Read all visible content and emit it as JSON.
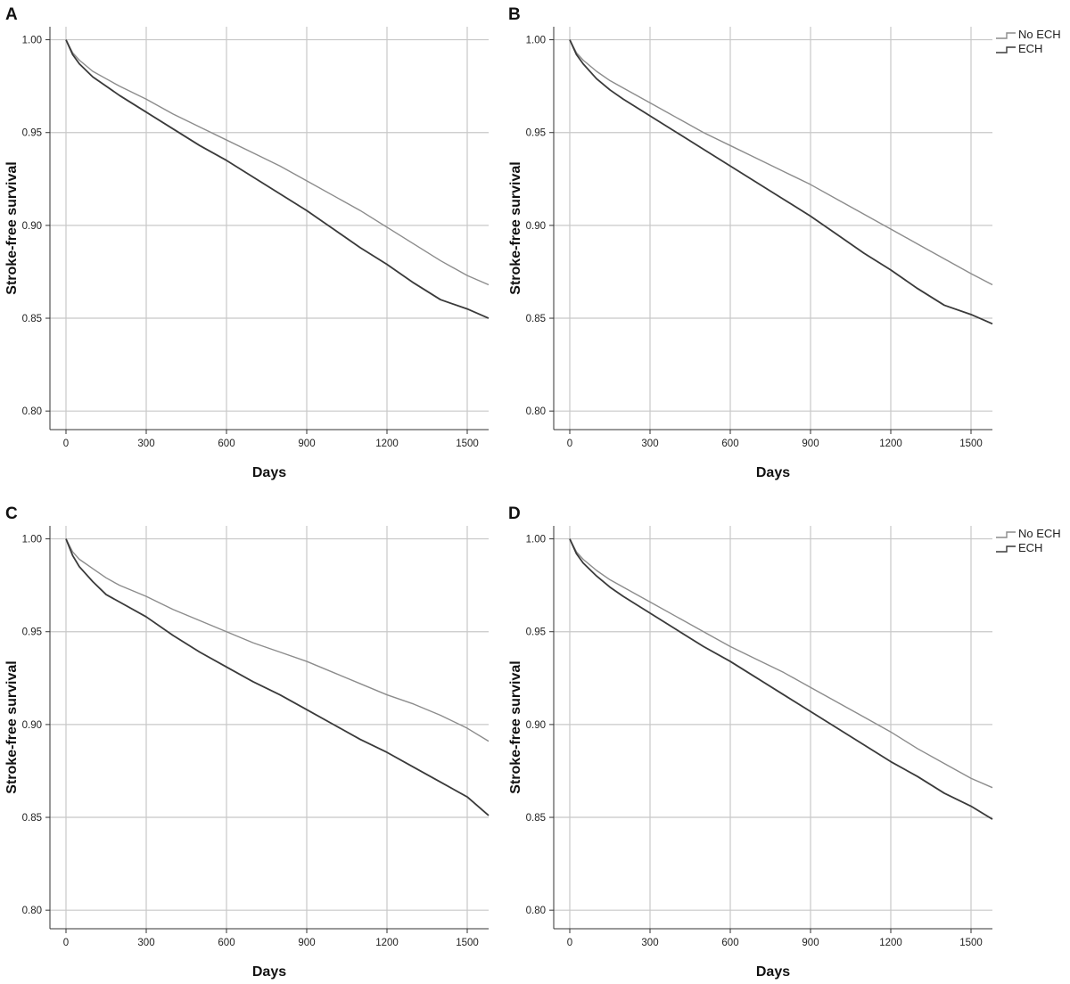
{
  "chart_data": [
    {
      "panel": "A",
      "type": "line",
      "xlabel": "Days",
      "ylabel": "Stroke-free survival",
      "xlim": [
        -60,
        1580
      ],
      "ylim": [
        0.79,
        1.007
      ],
      "xticks": [
        "0",
        "300",
        "600",
        "900",
        "1200",
        "1500"
      ],
      "yticks": [
        "0.80",
        "0.85",
        "0.90",
        "0.95",
        "1.00"
      ],
      "grid": true,
      "legend": [],
      "series": [
        {
          "name": "No ECH",
          "color": "#8c8c8c",
          "x": [
            0,
            25,
            50,
            100,
            150,
            200,
            300,
            400,
            500,
            600,
            700,
            800,
            900,
            1000,
            1100,
            1200,
            1300,
            1400,
            1500,
            1580
          ],
          "y": [
            1.0,
            0.993,
            0.989,
            0.983,
            0.979,
            0.975,
            0.968,
            0.96,
            0.953,
            0.946,
            0.939,
            0.932,
            0.924,
            0.916,
            0.908,
            0.899,
            0.89,
            0.881,
            0.873,
            0.868
          ]
        },
        {
          "name": "ECH",
          "color": "#3a3a3a",
          "x": [
            0,
            25,
            50,
            100,
            150,
            200,
            300,
            400,
            500,
            600,
            700,
            800,
            900,
            1000,
            1100,
            1200,
            1300,
            1400,
            1500,
            1580
          ],
          "y": [
            1.0,
            0.992,
            0.987,
            0.98,
            0.975,
            0.97,
            0.961,
            0.952,
            0.943,
            0.935,
            0.926,
            0.917,
            0.908,
            0.898,
            0.888,
            0.879,
            0.869,
            0.86,
            0.855,
            0.85
          ]
        }
      ]
    },
    {
      "panel": "B",
      "type": "line",
      "xlabel": "Days",
      "ylabel": "Stroke-free survival",
      "xlim": [
        -60,
        1580
      ],
      "ylim": [
        0.79,
        1.007
      ],
      "xticks": [
        "0",
        "300",
        "600",
        "900",
        "1200",
        "1500"
      ],
      "yticks": [
        "0.80",
        "0.85",
        "0.90",
        "0.95",
        "1.00"
      ],
      "grid": true,
      "legend": [
        "No ECH",
        "ECH"
      ],
      "legend_position": "top-right",
      "series": [
        {
          "name": "No ECH",
          "color": "#8c8c8c",
          "x": [
            0,
            25,
            50,
            100,
            150,
            200,
            300,
            400,
            500,
            600,
            700,
            800,
            900,
            1000,
            1100,
            1200,
            1300,
            1400,
            1500,
            1580
          ],
          "y": [
            1.0,
            0.993,
            0.989,
            0.983,
            0.978,
            0.974,
            0.966,
            0.958,
            0.95,
            0.943,
            0.936,
            0.929,
            0.922,
            0.914,
            0.906,
            0.898,
            0.89,
            0.882,
            0.874,
            0.868
          ]
        },
        {
          "name": "ECH",
          "color": "#3a3a3a",
          "x": [
            0,
            25,
            50,
            100,
            150,
            200,
            300,
            400,
            500,
            600,
            700,
            800,
            900,
            1000,
            1100,
            1200,
            1300,
            1400,
            1500,
            1580
          ],
          "y": [
            1.0,
            0.992,
            0.987,
            0.979,
            0.973,
            0.968,
            0.959,
            0.95,
            0.941,
            0.932,
            0.923,
            0.914,
            0.905,
            0.895,
            0.885,
            0.876,
            0.866,
            0.857,
            0.852,
            0.847
          ]
        }
      ]
    },
    {
      "panel": "C",
      "type": "line",
      "xlabel": "Days",
      "ylabel": "Stroke-free survival",
      "xlim": [
        -60,
        1580
      ],
      "ylim": [
        0.79,
        1.007
      ],
      "xticks": [
        "0",
        "300",
        "600",
        "900",
        "1200",
        "1500"
      ],
      "yticks": [
        "0.80",
        "0.85",
        "0.90",
        "0.95",
        "1.00"
      ],
      "grid": true,
      "legend": [],
      "series": [
        {
          "name": "No ECH",
          "color": "#8c8c8c",
          "x": [
            0,
            25,
            50,
            100,
            150,
            200,
            300,
            400,
            500,
            600,
            700,
            800,
            900,
            1000,
            1100,
            1200,
            1300,
            1400,
            1500,
            1580
          ],
          "y": [
            1.0,
            0.993,
            0.989,
            0.984,
            0.979,
            0.975,
            0.969,
            0.962,
            0.956,
            0.95,
            0.944,
            0.939,
            0.934,
            0.928,
            0.922,
            0.916,
            0.911,
            0.905,
            0.898,
            0.891
          ]
        },
        {
          "name": "ECH",
          "color": "#3a3a3a",
          "x": [
            0,
            25,
            50,
            100,
            150,
            200,
            300,
            400,
            500,
            600,
            700,
            800,
            900,
            1000,
            1100,
            1200,
            1300,
            1400,
            1500,
            1580
          ],
          "y": [
            1.0,
            0.991,
            0.985,
            0.977,
            0.97,
            0.966,
            0.958,
            0.948,
            0.939,
            0.931,
            0.923,
            0.916,
            0.908,
            0.9,
            0.892,
            0.885,
            0.877,
            0.869,
            0.861,
            0.851
          ]
        }
      ]
    },
    {
      "panel": "D",
      "type": "line",
      "xlabel": "Days",
      "ylabel": "Stroke-free survival",
      "xlim": [
        -60,
        1580
      ],
      "ylim": [
        0.79,
        1.007
      ],
      "xticks": [
        "0",
        "300",
        "600",
        "900",
        "1200",
        "1500"
      ],
      "yticks": [
        "0.80",
        "0.85",
        "0.90",
        "0.95",
        "1.00"
      ],
      "grid": true,
      "legend": [
        "No ECH",
        "ECH"
      ],
      "legend_position": "top-right",
      "series": [
        {
          "name": "No ECH",
          "color": "#8c8c8c",
          "x": [
            0,
            25,
            50,
            100,
            150,
            200,
            300,
            400,
            500,
            600,
            700,
            800,
            900,
            1000,
            1100,
            1200,
            1300,
            1400,
            1500,
            1580
          ],
          "y": [
            1.0,
            0.993,
            0.989,
            0.983,
            0.978,
            0.974,
            0.966,
            0.958,
            0.95,
            0.942,
            0.935,
            0.928,
            0.92,
            0.912,
            0.904,
            0.896,
            0.887,
            0.879,
            0.871,
            0.866
          ]
        },
        {
          "name": "ECH",
          "color": "#3a3a3a",
          "x": [
            0,
            25,
            50,
            100,
            150,
            200,
            300,
            400,
            500,
            600,
            700,
            800,
            900,
            1000,
            1100,
            1200,
            1300,
            1400,
            1500,
            1580
          ],
          "y": [
            1.0,
            0.992,
            0.987,
            0.98,
            0.974,
            0.969,
            0.96,
            0.951,
            0.942,
            0.934,
            0.925,
            0.916,
            0.907,
            0.898,
            0.889,
            0.88,
            0.872,
            0.863,
            0.856,
            0.849
          ]
        }
      ]
    }
  ]
}
